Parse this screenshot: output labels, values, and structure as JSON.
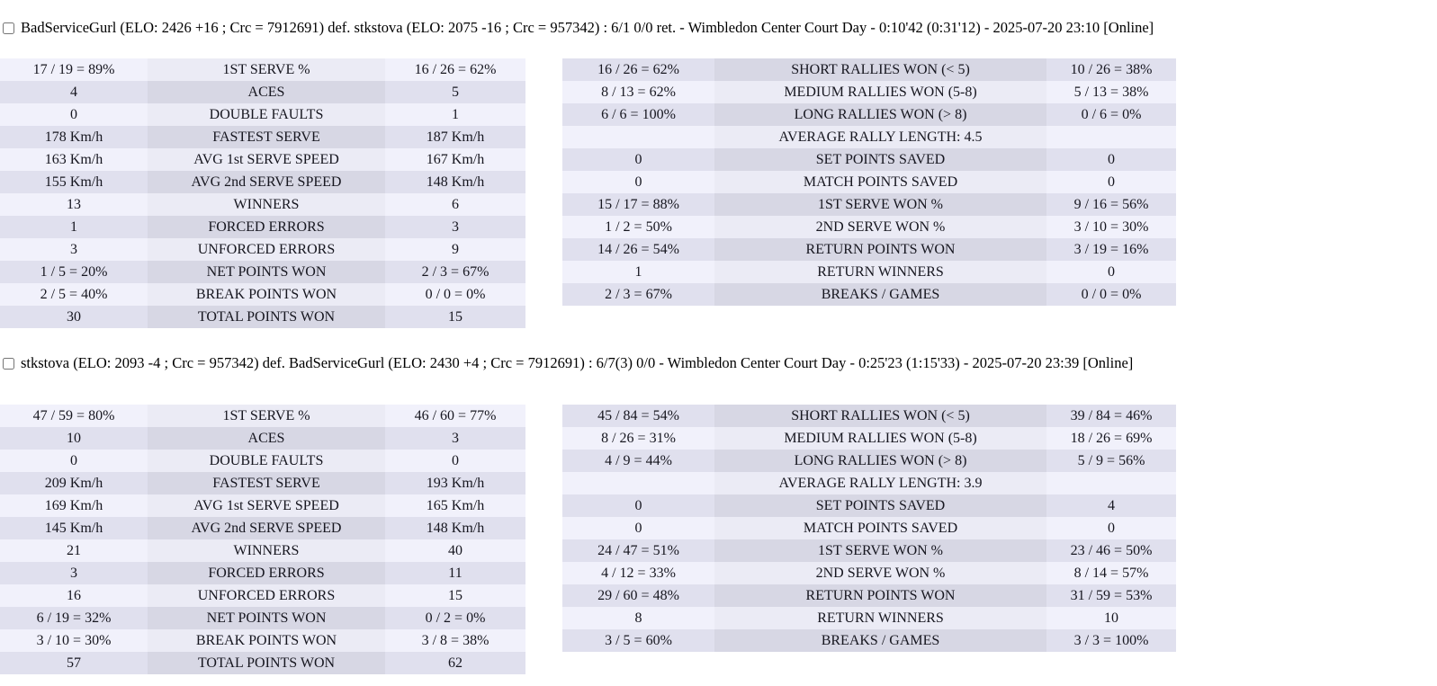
{
  "theme": {
    "page_background": "#ffffff",
    "row_light_value": "#f1f1fb",
    "row_light_label": "#ebebf5",
    "row_dark_value": "#e0e0ee",
    "row_dark_label": "#d7d7e4",
    "text_color": "#16161f"
  },
  "matches": [
    {
      "title": "BadServiceGurl (ELO: 2426 +16 ; Crc = 7912691) def. stkstova (ELO: 2075 -16 ; Crc = 957342) : 6/1 0/0 ret. - Wimbledon Center Court Day - 0:10'42 (0:31'12) - 2025-07-20 23:10 [Online]",
      "checkbox_checked": false,
      "serve_table": [
        [
          "17 / 19 = 89%",
          "1ST SERVE %",
          "16 / 26 = 62%"
        ],
        [
          "4",
          "ACES",
          "5"
        ],
        [
          "0",
          "DOUBLE FAULTS",
          "1"
        ],
        [
          "178 Km/h",
          "FASTEST SERVE",
          "187 Km/h"
        ],
        [
          "163 Km/h",
          "AVG 1st SERVE SPEED",
          "167 Km/h"
        ],
        [
          "155 Km/h",
          "AVG 2nd SERVE SPEED",
          "148 Km/h"
        ],
        [
          "13",
          "WINNERS",
          "6"
        ],
        [
          "1",
          "FORCED ERRORS",
          "3"
        ],
        [
          "3",
          "UNFORCED ERRORS",
          "9"
        ],
        [
          "1 / 5 = 20%",
          "NET POINTS WON",
          "2 / 3 = 67%"
        ],
        [
          "2 / 5 = 40%",
          "BREAK POINTS WON",
          "0 / 0 = 0%"
        ],
        [
          "30",
          "TOTAL POINTS WON",
          "15"
        ]
      ],
      "rally_table": [
        [
          "16 / 26 = 62%",
          "SHORT RALLIES WON (< 5)",
          "10 / 26 = 38%"
        ],
        [
          "8 / 13 = 62%",
          "MEDIUM RALLIES WON (5-8)",
          "5 / 13 = 38%"
        ],
        [
          "6 / 6 = 100%",
          "LONG RALLIES WON (> 8)",
          "0 / 6 = 0%"
        ],
        [
          "",
          "AVERAGE RALLY LENGTH: 4.5",
          ""
        ],
        [
          "0",
          "SET POINTS SAVED",
          "0"
        ],
        [
          "0",
          "MATCH POINTS SAVED",
          "0"
        ],
        [
          "15 / 17 = 88%",
          "1ST SERVE WON %",
          "9 / 16 = 56%"
        ],
        [
          "1 / 2 = 50%",
          "2ND SERVE WON %",
          "3 / 10 = 30%"
        ],
        [
          "14 / 26 = 54%",
          "RETURN POINTS WON",
          "3 / 19 = 16%"
        ],
        [
          "1",
          "RETURN WINNERS",
          "0"
        ],
        [
          "2 / 3 = 67%",
          "BREAKS / GAMES",
          "0 / 0 = 0%"
        ]
      ]
    },
    {
      "title": "stkstova (ELO: 2093 -4 ; Crc = 957342) def. BadServiceGurl (ELO: 2430 +4 ; Crc = 7912691) : 6/7(3) 0/0 - Wimbledon Center Court Day - 0:25'23 (1:15'33) - 2025-07-20 23:39 [Online]",
      "checkbox_checked": false,
      "serve_table": [
        [
          "47 / 59 = 80%",
          "1ST SERVE %",
          "46 / 60 = 77%"
        ],
        [
          "10",
          "ACES",
          "3"
        ],
        [
          "0",
          "DOUBLE FAULTS",
          "0"
        ],
        [
          "209 Km/h",
          "FASTEST SERVE",
          "193 Km/h"
        ],
        [
          "169 Km/h",
          "AVG 1st SERVE SPEED",
          "165 Km/h"
        ],
        [
          "145 Km/h",
          "AVG 2nd SERVE SPEED",
          "148 Km/h"
        ],
        [
          "21",
          "WINNERS",
          "40"
        ],
        [
          "3",
          "FORCED ERRORS",
          "11"
        ],
        [
          "16",
          "UNFORCED ERRORS",
          "15"
        ],
        [
          "6 / 19 = 32%",
          "NET POINTS WON",
          "0 / 2 = 0%"
        ],
        [
          "3 / 10 = 30%",
          "BREAK POINTS WON",
          "3 / 8 = 38%"
        ],
        [
          "57",
          "TOTAL POINTS WON",
          "62"
        ]
      ],
      "rally_table": [
        [
          "45 / 84 = 54%",
          "SHORT RALLIES WON (< 5)",
          "39 / 84 = 46%"
        ],
        [
          "8 / 26 = 31%",
          "MEDIUM RALLIES WON (5-8)",
          "18 / 26 = 69%"
        ],
        [
          "4 / 9 = 44%",
          "LONG RALLIES WON (> 8)",
          "5 / 9 = 56%"
        ],
        [
          "",
          "AVERAGE RALLY LENGTH: 3.9",
          ""
        ],
        [
          "0",
          "SET POINTS SAVED",
          "4"
        ],
        [
          "0",
          "MATCH POINTS SAVED",
          "0"
        ],
        [
          "24 / 47 = 51%",
          "1ST SERVE WON %",
          "23 / 46 = 50%"
        ],
        [
          "4 / 12 = 33%",
          "2ND SERVE WON %",
          "8 / 14 = 57%"
        ],
        [
          "29 / 60 = 48%",
          "RETURN POINTS WON",
          "31 / 59 = 53%"
        ],
        [
          "8",
          "RETURN WINNERS",
          "10"
        ],
        [
          "3 / 5 = 60%",
          "BREAKS / GAMES",
          "3 / 3 = 100%"
        ]
      ]
    }
  ]
}
